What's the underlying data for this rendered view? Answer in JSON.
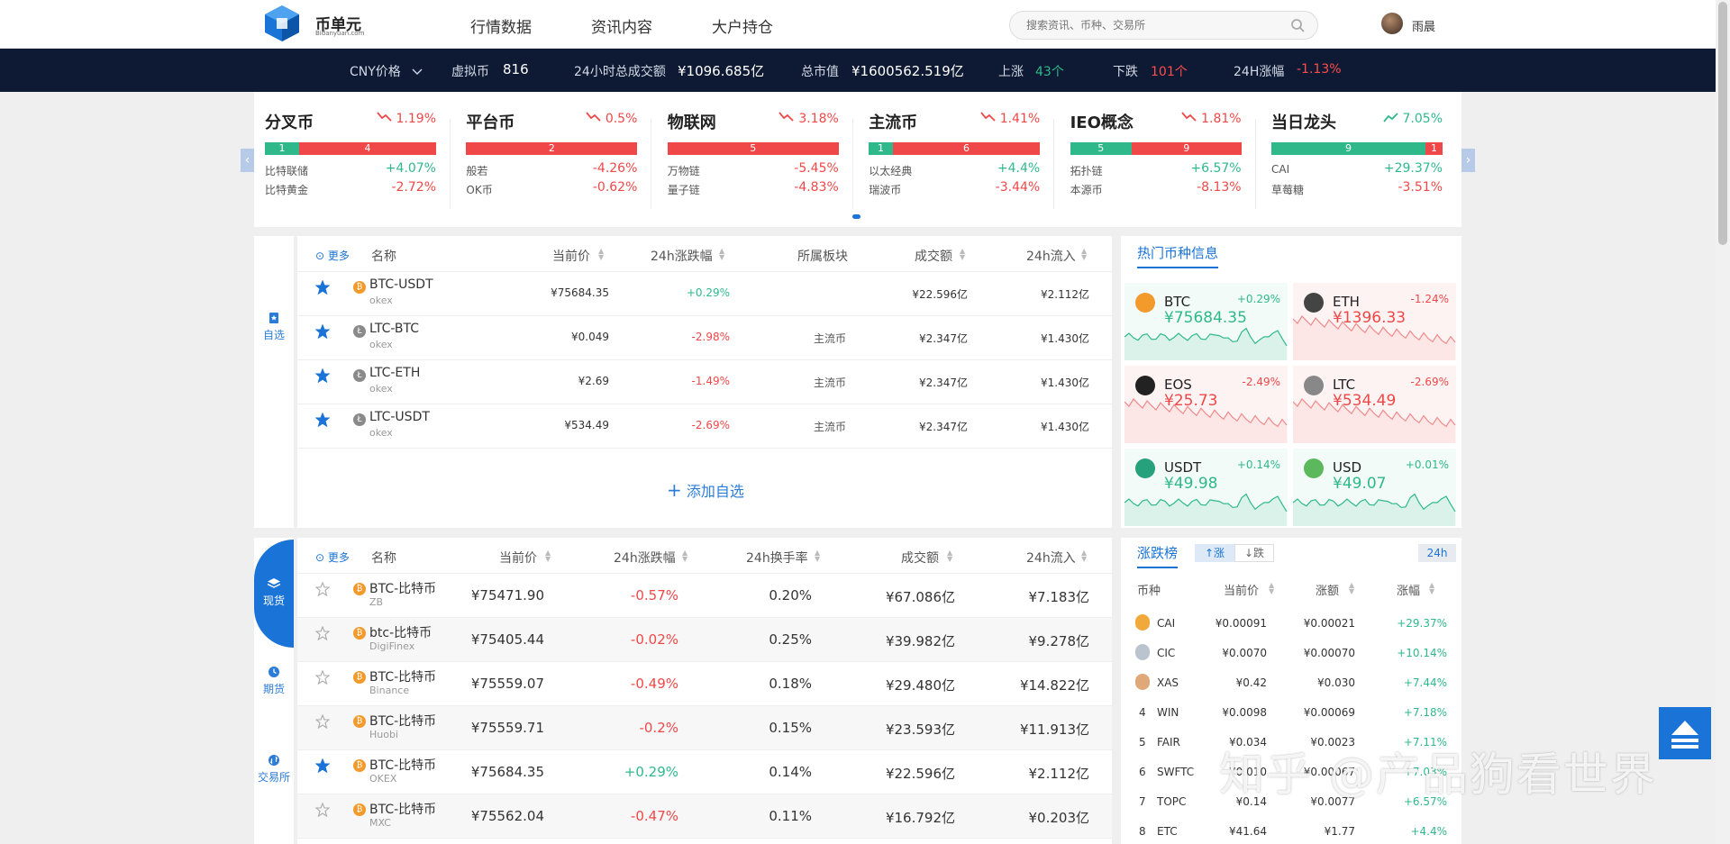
{
  "header": {
    "logo_text": "币单元",
    "logo_sub": "Bidanyuan.com",
    "nav": [
      "行情数据",
      "资讯内容",
      "大户持仓"
    ],
    "search_placeholder": "搜索资讯、币种、交易所",
    "username": "雨晨"
  },
  "stats": {
    "price_unit": "CNY价格",
    "coins_label": "虚拟币",
    "coins_value": "816",
    "volume_label": "24小时总成交额",
    "volume_value": "¥1096.685亿",
    "cap_label": "总市值",
    "cap_value": "¥1600562.519亿",
    "up_label": "上涨",
    "up_value": "43个",
    "down_label": "下跌",
    "down_value": "101个",
    "change_label": "24H涨幅",
    "change_value": "-1.13%"
  },
  "categories": [
    {
      "name": "分叉币",
      "change": "1.19%",
      "up": "1",
      "down": "4",
      "up_frac": 0.2,
      "trend": "down",
      "rows": [
        {
          "coin": "比特联储",
          "value": "+4.07%"
        },
        {
          "coin": "比特黄金",
          "value": "-2.72%"
        }
      ]
    },
    {
      "name": "平台币",
      "change": "0.5%",
      "up": "",
      "down": "2",
      "up_frac": 0,
      "trend": "down",
      "rows": [
        {
          "coin": "般若",
          "value": "-4.26%"
        },
        {
          "coin": "OK币",
          "value": "-0.62%"
        }
      ]
    },
    {
      "name": "物联网",
      "change": "3.18%",
      "up": "",
      "down": "5",
      "up_frac": 0,
      "trend": "down",
      "rows": [
        {
          "coin": "万物链",
          "value": "-5.45%"
        },
        {
          "coin": "量子链",
          "value": "-4.83%"
        }
      ]
    },
    {
      "name": "主流币",
      "change": "1.41%",
      "up": "1",
      "down": "6",
      "up_frac": 0.14,
      "trend": "down",
      "rows": [
        {
          "coin": "以太经典",
          "value": "+4.4%"
        },
        {
          "coin": "瑞波币",
          "value": "-3.44%"
        }
      ]
    },
    {
      "name": "IEO概念",
      "change": "1.81%",
      "up": "5",
      "down": "9",
      "up_frac": 0.36,
      "trend": "down",
      "rows": [
        {
          "coin": "拓扑链",
          "value": "+6.57%"
        },
        {
          "coin": "本源币",
          "value": "-8.13%"
        }
      ]
    },
    {
      "name": "当日龙头",
      "change": "7.05%",
      "up": "9",
      "down": "1",
      "up_frac": 0.9,
      "trend": "up",
      "rows": [
        {
          "coin": "CAI",
          "value": "+29.37%"
        },
        {
          "coin": "草莓糖",
          "value": "-3.51%"
        }
      ]
    }
  ],
  "watchlist": {
    "side_label": "自选",
    "headers": {
      "more": "更多",
      "name": "名称",
      "price": "当前价",
      "change": "24h涨跌幅",
      "sector": "所属板块",
      "volume": "成交额",
      "inflow": "24h流入"
    },
    "rows": [
      {
        "pair": "BTC-USDT",
        "exchange": "okex",
        "price": "¥75684.35",
        "change": "+0.29%",
        "sector": "",
        "volume": "¥22.596亿",
        "inflow": "¥2.112亿",
        "coin": "btc"
      },
      {
        "pair": "LTC-BTC",
        "exchange": "okex",
        "price": "¥0.049",
        "change": "-2.98%",
        "sector": "主流币",
        "volume": "¥2.347亿",
        "inflow": "¥1.430亿",
        "coin": "ltc"
      },
      {
        "pair": "LTC-ETH",
        "exchange": "okex",
        "price": "¥2.69",
        "change": "-1.49%",
        "sector": "主流币",
        "volume": "¥2.347亿",
        "inflow": "¥1.430亿",
        "coin": "ltc"
      },
      {
        "pair": "LTC-USDT",
        "exchange": "okex",
        "price": "¥534.49",
        "change": "-2.69%",
        "sector": "主流币",
        "volume": "¥2.347亿",
        "inflow": "¥1.430亿",
        "coin": "ltc"
      }
    ],
    "add_label": "添加自选"
  },
  "hot": {
    "title": "热门币种信息",
    "cards": [
      {
        "name": "BTC",
        "price": "¥75684.35",
        "change": "+0.29%",
        "color": "#f39a2c",
        "trend": "up"
      },
      {
        "name": "ETH",
        "price": "¥1396.33",
        "change": "-1.24%",
        "color": "#444444",
        "trend": "down"
      },
      {
        "name": "EOS",
        "price": "¥25.73",
        "change": "-2.49%",
        "color": "#222222",
        "trend": "down"
      },
      {
        "name": "LTC",
        "price": "¥534.49",
        "change": "-2.69%",
        "color": "#888888",
        "trend": "down"
      },
      {
        "name": "USDT",
        "price": "¥49.98",
        "change": "+0.14%",
        "color": "#26a17b",
        "trend": "up"
      },
      {
        "name": "USD",
        "price": "¥49.07",
        "change": "+0.01%",
        "color": "#5cb85c",
        "trend": "up"
      }
    ]
  },
  "spot": {
    "side": [
      "现货",
      "期货",
      "交易所"
    ],
    "headers": {
      "more": "更多",
      "name": "名称",
      "price": "当前价",
      "change": "24h涨跌幅",
      "turnover": "24h换手率",
      "volume": "成交额",
      "inflow": "24h流入"
    },
    "rows": [
      {
        "pair": "BTC-比特币",
        "exchange": "ZB",
        "price": "¥75471.90",
        "change": "-0.57%",
        "turnover": "0.20%",
        "volume": "¥67.086亿",
        "inflow": "¥7.183亿",
        "starred": false
      },
      {
        "pair": "btc-比特币",
        "exchange": "DigiFinex",
        "price": "¥75405.44",
        "change": "-0.02%",
        "turnover": "0.25%",
        "volume": "¥39.982亿",
        "inflow": "¥9.278亿",
        "starred": false
      },
      {
        "pair": "BTC-比特币",
        "exchange": "Binance",
        "price": "¥75559.07",
        "change": "-0.49%",
        "turnover": "0.18%",
        "volume": "¥29.480亿",
        "inflow": "¥14.822亿",
        "starred": false
      },
      {
        "pair": "BTC-比特币",
        "exchange": "Huobi",
        "price": "¥75559.71",
        "change": "-0.2%",
        "turnover": "0.15%",
        "volume": "¥23.593亿",
        "inflow": "¥11.913亿",
        "starred": false
      },
      {
        "pair": "BTC-比特币",
        "exchange": "OKEX",
        "price": "¥75684.35",
        "change": "+0.29%",
        "turnover": "0.14%",
        "volume": "¥22.596亿",
        "inflow": "¥2.112亿",
        "starred": true
      },
      {
        "pair": "BTC-比特币",
        "exchange": "MXC",
        "price": "¥75562.04",
        "change": "-0.47%",
        "turnover": "0.11%",
        "volume": "¥16.792亿",
        "inflow": "¥0.203亿",
        "starred": false
      }
    ]
  },
  "ranking": {
    "title": "涨跌榜",
    "up_tab": "↑涨",
    "down_tab": "↓跌",
    "period": "24h",
    "headers": {
      "coin": "币种",
      "price": "当前价",
      "amount": "涨额",
      "change": "涨幅"
    },
    "rows": [
      {
        "rank": "1",
        "coin": "CAI",
        "price": "¥0.00091",
        "amount": "¥0.00021",
        "change": "+29.37%"
      },
      {
        "rank": "2",
        "coin": "CIC",
        "price": "¥0.0070",
        "amount": "¥0.00070",
        "change": "+10.14%"
      },
      {
        "rank": "3",
        "coin": "XAS",
        "price": "¥0.42",
        "amount": "¥0.030",
        "change": "+7.44%"
      },
      {
        "rank": "4",
        "coin": "WIN",
        "price": "¥0.0098",
        "amount": "¥0.00069",
        "change": "+7.18%"
      },
      {
        "rank": "5",
        "coin": "FAIR",
        "price": "¥0.034",
        "amount": "¥0.0023",
        "change": "+7.11%"
      },
      {
        "rank": "6",
        "coin": "SWFTC",
        "price": "¥0.010",
        "amount": "¥0.00067",
        "change": "+7.03%"
      },
      {
        "rank": "7",
        "coin": "TOPC",
        "price": "¥0.14",
        "amount": "¥0.0077",
        "change": "+6.57%"
      },
      {
        "rank": "8",
        "coin": "ETC",
        "price": "¥41.64",
        "amount": "¥1.77",
        "change": "+4.4%"
      }
    ]
  },
  "watermark": "知乎 @产品狗看世界"
}
